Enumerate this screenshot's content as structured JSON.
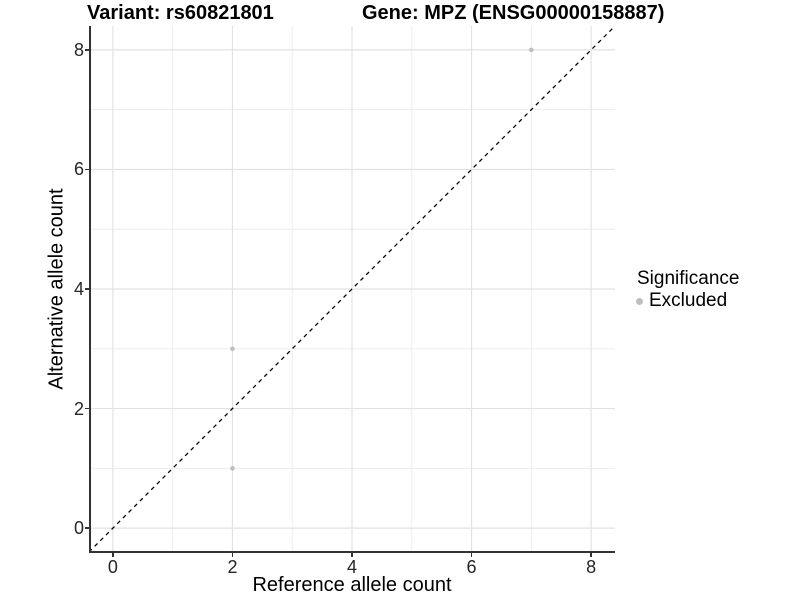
{
  "figure": {
    "title_left": "Variant: rs60821801",
    "title_right": "Gene: MPZ (ENSG00000158887)"
  },
  "axes": {
    "x_title": "Reference allele count",
    "y_title": "Alternative allele count"
  },
  "legend": {
    "title": "Significance",
    "items": [
      {
        "label": "Excluded",
        "color": "#bebebe"
      }
    ]
  },
  "colors": {
    "background": "#ffffff",
    "axis_line": "#333333",
    "grid_major": "#e2e2e2",
    "grid_minor": "#ededed",
    "point": "#bebebe",
    "identity_line": "#000000",
    "tick_label": "#262626"
  },
  "chart_data": {
    "type": "scatter",
    "title": "Variant: rs60821801 | Gene: MPZ (ENSG00000158887)",
    "xlabel": "Reference allele count",
    "ylabel": "Alternative allele count",
    "xlim": [
      -0.4,
      8.4
    ],
    "ylim": [
      -0.4,
      8.4
    ],
    "x_ticks": [
      0,
      2,
      4,
      6,
      8
    ],
    "y_ticks": [
      0,
      2,
      4,
      6,
      8
    ],
    "x_minor_gridlines": [
      1,
      3,
      5,
      7
    ],
    "y_minor_gridlines": [
      1,
      3,
      5,
      7
    ],
    "grid": "major and minor, light gray on white",
    "legend_position": "right",
    "series": [
      {
        "name": "Excluded",
        "color": "#bebebe",
        "points": [
          [
            2,
            1
          ],
          [
            2,
            3
          ],
          [
            7,
            8
          ]
        ]
      }
    ],
    "reference_line": {
      "type": "identity y=x",
      "style": "dashed",
      "color": "#000000",
      "from": [
        -0.4,
        -0.4
      ],
      "to": [
        8.4,
        8.4
      ]
    }
  }
}
